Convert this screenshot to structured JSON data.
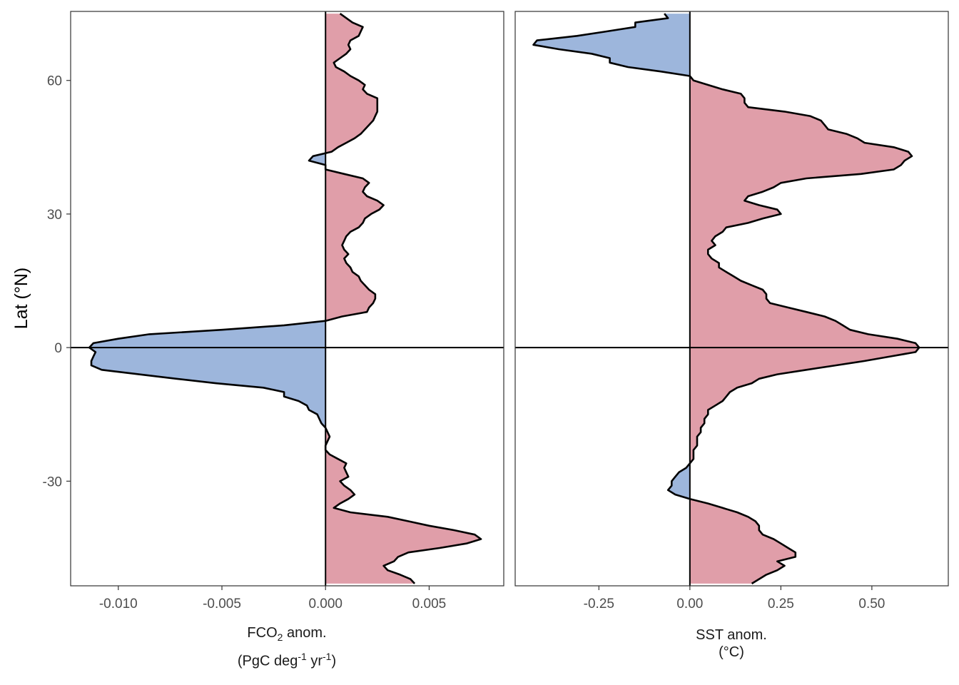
{
  "figure": {
    "ylabel": "Lat (°N)",
    "colors": {
      "positive": "#e09ea9",
      "negative": "#9db6dc",
      "outline": "#000000",
      "frame": "#333333"
    }
  },
  "xlabels": {
    "left": {
      "line1_pre": "FCO",
      "line1_sub": "2",
      "line1_post": " anom.",
      "line2_a": "(PgC deg",
      "line2_sup1": "-1",
      "line2_b": " yr",
      "line2_sup2": "-1",
      "line2_c": ")"
    },
    "right": {
      "line1": "SST anom.",
      "line2": "(°C)"
    }
  },
  "chart_data": [
    {
      "type": "area",
      "orientation": "horizontal",
      "xlabel": "FCO2 anom. (PgC deg-1 yr-1)",
      "ylabel": "Lat (°N)",
      "xlim": [
        -0.0123,
        0.0086
      ],
      "ylim": [
        -53.5,
        75.5
      ],
      "xticks": [
        -0.01,
        -0.005,
        0.0,
        0.005
      ],
      "xtick_labels": [
        "-0.010",
        "-0.005",
        "0.000",
        "0.005"
      ],
      "yticks": [
        -30,
        0,
        30,
        60
      ],
      "ytick_labels": [
        "-30",
        "0",
        "30",
        "60"
      ],
      "grid": false,
      "reference_lines": {
        "x": 0,
        "y": 0
      },
      "series": [
        {
          "y": [
            75,
            73,
            72,
            70,
            69,
            68,
            67,
            66,
            65,
            64,
            63,
            62,
            61,
            60,
            59,
            58,
            57,
            56,
            55,
            54,
            53,
            52,
            51,
            50,
            49,
            48,
            47,
            46,
            45,
            44,
            43,
            42,
            41,
            40,
            39,
            38,
            37,
            36,
            35,
            34,
            33,
            32,
            31,
            30,
            29,
            28,
            27,
            26,
            25,
            24,
            23,
            22,
            21,
            20,
            19,
            18,
            17,
            16,
            15,
            14,
            13,
            12,
            11,
            10,
            9,
            8,
            7,
            6,
            5,
            4,
            3,
            2,
            1,
            0,
            -1,
            -2,
            -3,
            -4,
            -5,
            -6,
            -7,
            -8,
            -9,
            -10,
            -11,
            -12,
            -13,
            -14,
            -15,
            -16,
            -17,
            -18,
            -19,
            -20,
            -21,
            -22,
            -23,
            -24,
            -25,
            -26,
            -27,
            -28,
            -29,
            -30,
            -31,
            -32,
            -33,
            -34,
            -35,
            -36,
            -37,
            -38,
            -39,
            -40,
            -41,
            -42,
            -43,
            -44,
            -45,
            -46,
            -47,
            -48,
            -49,
            -50,
            -51,
            -52,
            -53
          ],
          "values": [
            0.0007,
            0.0013,
            0.0018,
            0.0016,
            0.0012,
            0.0011,
            0.0012,
            0.001,
            0.0007,
            0.0004,
            0.0005,
            0.0009,
            0.0012,
            0.0016,
            0.0019,
            0.0018,
            0.002,
            0.0025,
            0.0025,
            0.0025,
            0.0025,
            0.0024,
            0.0023,
            0.0021,
            0.0019,
            0.0017,
            0.0014,
            0.001,
            0.0006,
            0.0003,
            -0.0006,
            -0.0008,
            0.0,
            0.0,
            0.0009,
            0.0018,
            0.0021,
            0.0019,
            0.0018,
            0.002,
            0.0025,
            0.0028,
            0.0026,
            0.0022,
            0.0019,
            0.0018,
            0.0016,
            0.0012,
            0.001,
            0.0009,
            0.0008,
            0.0009,
            0.0011,
            0.0009,
            0.001,
            0.0012,
            0.0013,
            0.0016,
            0.0017,
            0.0019,
            0.0021,
            0.0024,
            0.0024,
            0.0023,
            0.0021,
            0.002,
            0.0008,
            0.0,
            -0.002,
            -0.005,
            -0.0085,
            -0.01,
            -0.0112,
            -0.0114,
            -0.0111,
            -0.0112,
            -0.0113,
            -0.0113,
            -0.0108,
            -0.009,
            -0.0072,
            -0.0053,
            -0.003,
            -0.002,
            -0.002,
            -0.0013,
            -0.0009,
            -0.0008,
            -0.0004,
            -0.0003,
            -0.0002,
            0.0,
            0.0001,
            0.0002,
            0.0001,
            0.0,
            0.0,
            0.0002,
            0.0006,
            0.001,
            0.0009,
            0.001,
            0.0011,
            0.0007,
            0.0009,
            0.0012,
            0.0014,
            0.0011,
            0.0007,
            0.0004,
            0.0012,
            0.003,
            0.004,
            0.005,
            0.0062,
            0.0072,
            0.0075,
            0.0068,
            0.0055,
            0.004,
            0.0035,
            0.0033,
            0.0028,
            0.003,
            0.0036,
            0.0041,
            0.0043
          ]
        }
      ]
    },
    {
      "type": "area",
      "orientation": "horizontal",
      "xlabel": "SST anom. (°C)",
      "ylabel": "Lat (°N)",
      "xlim": [
        -0.48,
        0.71
      ],
      "ylim": [
        -53.5,
        75.5
      ],
      "xticks": [
        -0.25,
        0.0,
        0.25,
        0.5
      ],
      "xtick_labels": [
        "-0.25",
        "0.00",
        "0.25",
        "0.50"
      ],
      "yticks": [
        -30,
        0,
        30,
        60
      ],
      "ytick_labels": [
        "-30",
        "0",
        "30",
        "60"
      ],
      "grid": false,
      "reference_lines": {
        "x": 0,
        "y": 0
      },
      "series": [
        {
          "y": [
            75,
            74,
            73,
            72,
            71,
            70,
            69,
            68,
            67,
            66,
            65,
            64,
            63,
            62,
            61,
            60,
            59,
            58,
            57,
            56,
            55,
            54,
            53,
            52,
            51,
            50,
            49,
            48,
            47,
            46,
            45,
            44,
            43,
            42,
            41,
            40,
            39,
            38,
            37,
            36,
            35,
            34,
            33,
            32,
            31,
            30,
            29,
            28,
            27,
            26,
            25,
            24,
            23,
            22,
            21,
            20,
            19,
            18,
            17,
            16,
            15,
            14,
            13,
            12,
            11,
            10,
            9,
            8,
            7,
            6,
            5,
            4,
            3,
            2,
            1,
            0,
            -1,
            -2,
            -3,
            -4,
            -5,
            -6,
            -7,
            -8,
            -9,
            -10,
            -11,
            -12,
            -13,
            -14,
            -15,
            -16,
            -17,
            -18,
            -19,
            -20,
            -21,
            -22,
            -23,
            -24,
            -25,
            -26,
            -27,
            -28,
            -29,
            -30,
            -31,
            -32,
            -33,
            -34,
            -35,
            -36,
            -37,
            -38,
            -39,
            -40,
            -41,
            -42,
            -43,
            -44,
            -45,
            -46,
            -47,
            -48,
            -49,
            -50,
            -51,
            -52,
            -53
          ],
          "values": [
            -0.07,
            -0.06,
            -0.15,
            -0.15,
            -0.23,
            -0.31,
            -0.42,
            -0.43,
            -0.36,
            -0.27,
            -0.22,
            -0.22,
            -0.17,
            -0.08,
            0.0,
            0.01,
            0.05,
            0.09,
            0.14,
            0.15,
            0.15,
            0.16,
            0.26,
            0.33,
            0.36,
            0.37,
            0.38,
            0.43,
            0.46,
            0.48,
            0.56,
            0.6,
            0.61,
            0.59,
            0.58,
            0.56,
            0.47,
            0.32,
            0.25,
            0.23,
            0.2,
            0.16,
            0.15,
            0.19,
            0.24,
            0.25,
            0.2,
            0.16,
            0.1,
            0.09,
            0.07,
            0.06,
            0.07,
            0.05,
            0.05,
            0.06,
            0.08,
            0.08,
            0.1,
            0.12,
            0.14,
            0.17,
            0.2,
            0.21,
            0.21,
            0.22,
            0.27,
            0.32,
            0.37,
            0.4,
            0.42,
            0.44,
            0.49,
            0.57,
            0.62,
            0.63,
            0.62,
            0.55,
            0.48,
            0.4,
            0.32,
            0.24,
            0.19,
            0.17,
            0.13,
            0.11,
            0.1,
            0.09,
            0.07,
            0.05,
            0.05,
            0.04,
            0.04,
            0.03,
            0.03,
            0.02,
            0.02,
            0.02,
            0.01,
            0.01,
            0.01,
            0.0,
            -0.01,
            -0.03,
            -0.04,
            -0.05,
            -0.05,
            -0.06,
            -0.04,
            0.0,
            0.05,
            0.09,
            0.13,
            0.16,
            0.18,
            0.19,
            0.19,
            0.2,
            0.23,
            0.25,
            0.27,
            0.29,
            0.29,
            0.24,
            0.26,
            0.24,
            0.21,
            0.19,
            0.17
          ]
        }
      ]
    }
  ]
}
